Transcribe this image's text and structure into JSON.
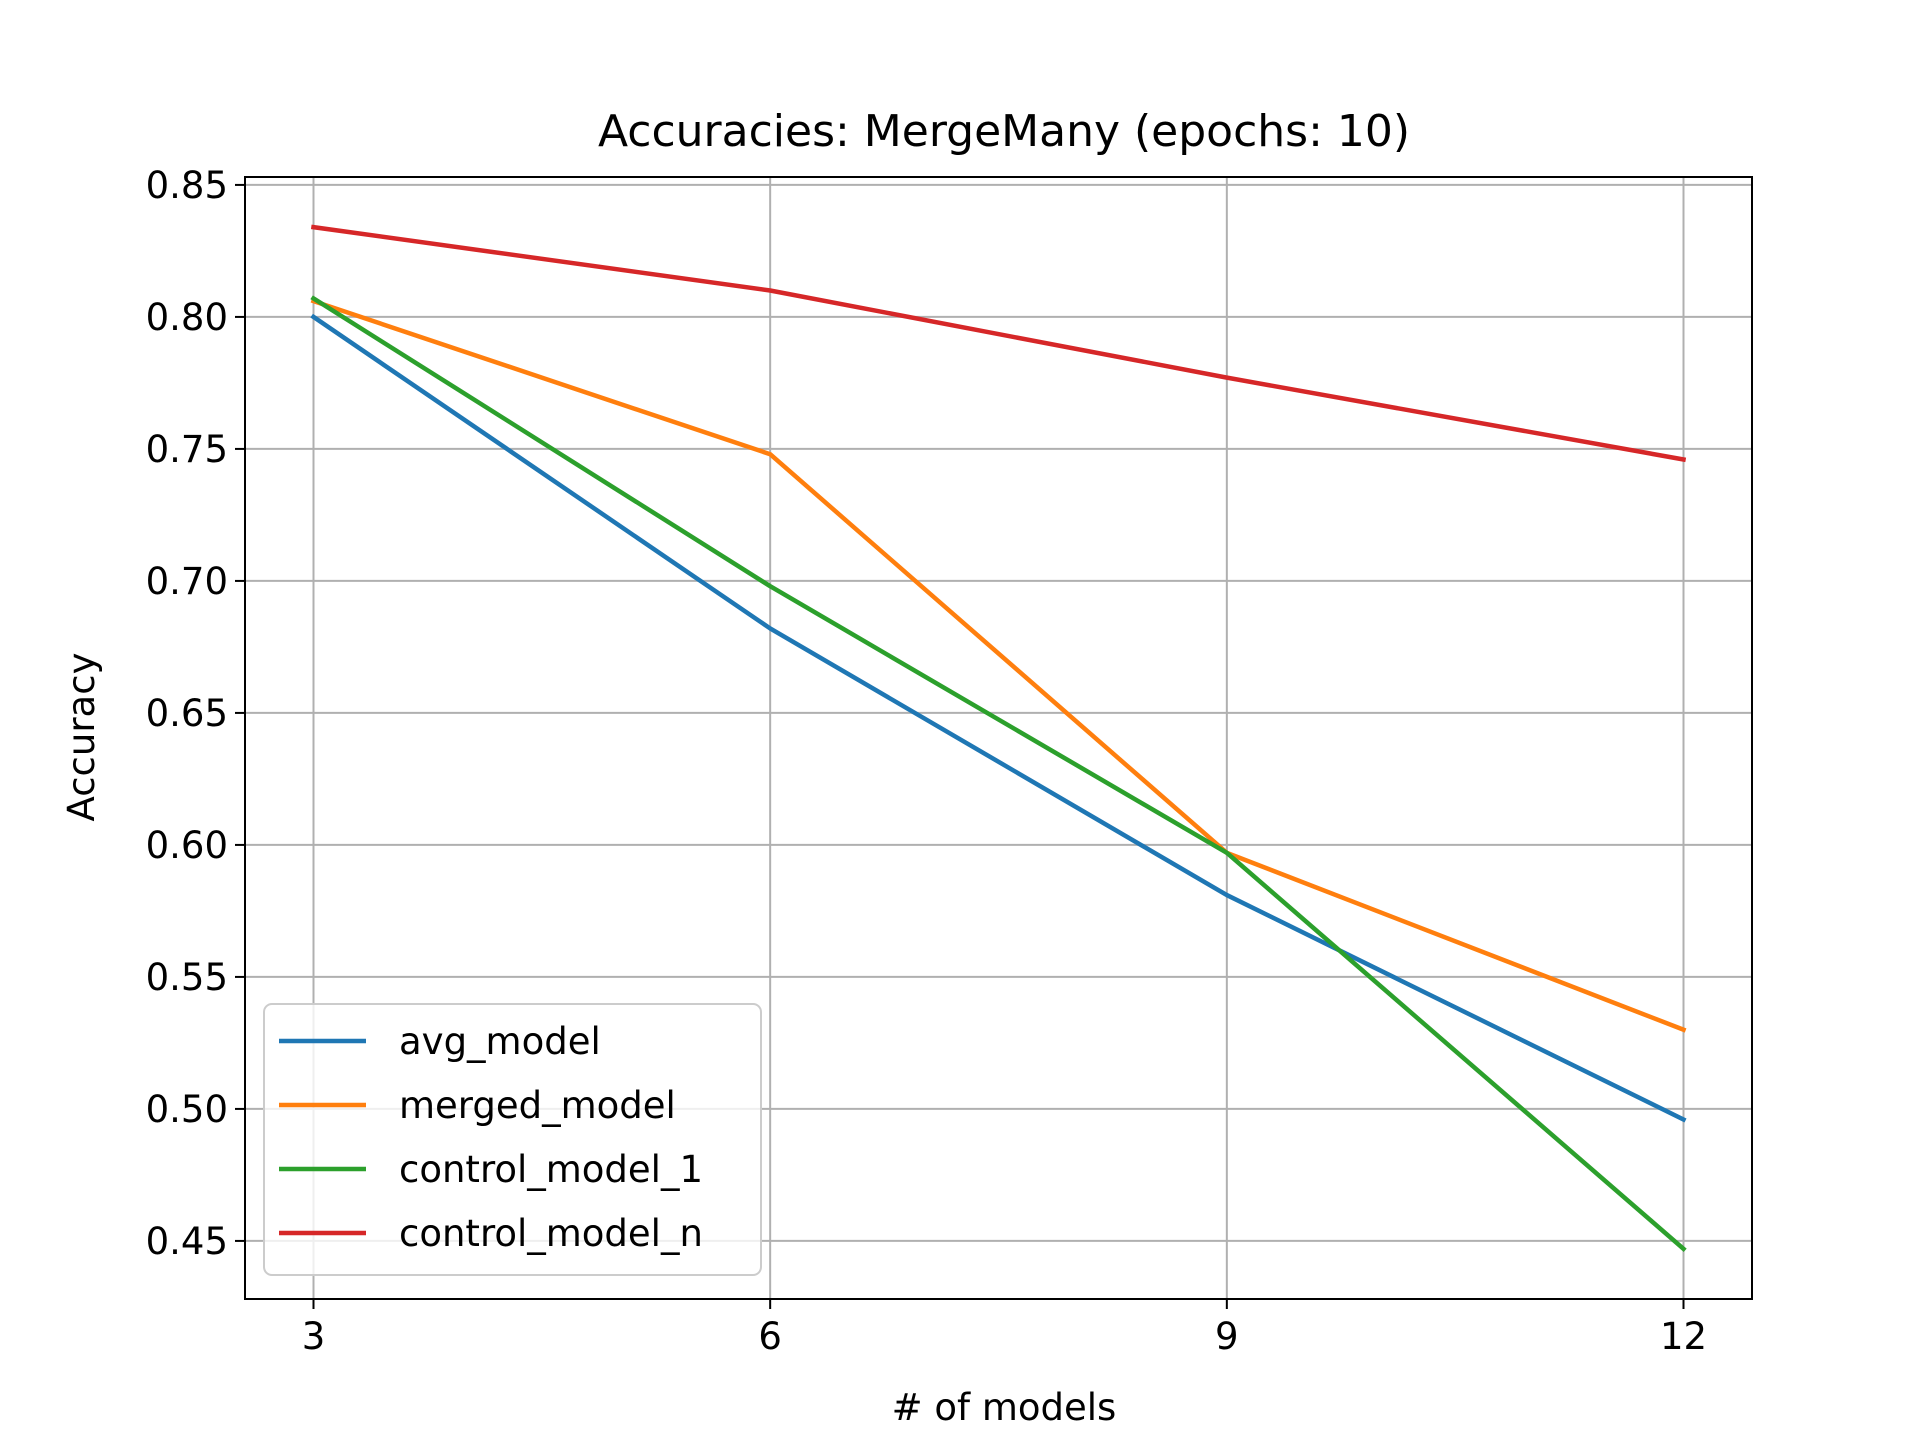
{
  "chart_data": {
    "type": "line",
    "title": "Accuracies: MergeMany (epochs: 10)",
    "xlabel": "# of models",
    "ylabel": "Accuracy",
    "x": [
      3,
      6,
      9,
      12
    ],
    "xticks": [
      3,
      6,
      9,
      12
    ],
    "yticks": [
      0.45,
      0.5,
      0.55,
      0.6,
      0.65,
      0.7,
      0.75,
      0.8,
      0.85
    ],
    "ytick_labels": [
      "0.45",
      "0.50",
      "0.55",
      "0.60",
      "0.65",
      "0.70",
      "0.75",
      "0.80",
      "0.85"
    ],
    "xlim": [
      2.55,
      12.45
    ],
    "ylim": [
      0.428,
      0.853
    ],
    "grid": true,
    "legend_position": "lower-left",
    "series": [
      {
        "name": "avg_model",
        "color": "#1f77b4",
        "values": [
          0.8,
          0.682,
          0.581,
          0.496
        ]
      },
      {
        "name": "merged_model",
        "color": "#ff7f0e",
        "values": [
          0.806,
          0.748,
          0.597,
          0.53
        ]
      },
      {
        "name": "control_model_1",
        "color": "#2ca02c",
        "values": [
          0.807,
          0.698,
          0.597,
          0.447
        ]
      },
      {
        "name": "control_model_n",
        "color": "#d62728",
        "values": [
          0.834,
          0.81,
          0.777,
          0.746
        ]
      }
    ]
  }
}
